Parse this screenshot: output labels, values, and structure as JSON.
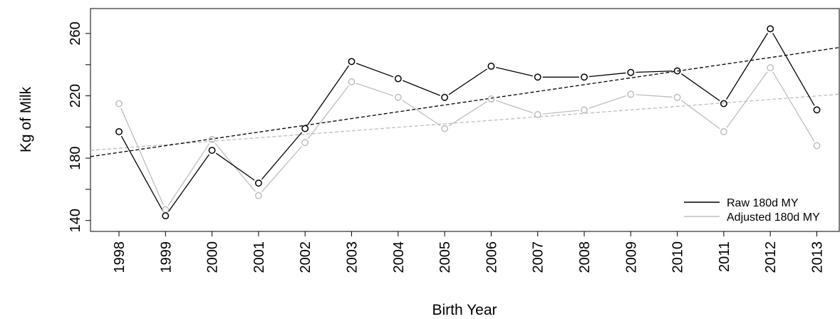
{
  "chart_data": {
    "type": "line",
    "xlabel": "Birth Year",
    "ylabel": "Kg of Milk",
    "categories": [
      "1998",
      "1999",
      "2000",
      "2001",
      "2002",
      "2003",
      "2004",
      "2005",
      "2006",
      "2007",
      "2008",
      "2009",
      "2010",
      "2011",
      "2012",
      "2013"
    ],
    "ylim": [
      133,
      276
    ],
    "yticks": [
      "140",
      "180",
      "220",
      "260"
    ],
    "yticks_minor": [
      160,
      200,
      240
    ],
    "series": [
      {
        "name": "Raw 180d MY",
        "color": "#000000",
        "marker": "open-circle",
        "values": [
          197,
          143,
          185,
          164,
          199,
          242,
          231,
          219,
          239,
          232,
          232,
          235,
          236,
          215,
          263,
          211
        ],
        "trend": {
          "style": "dashed",
          "start": 181,
          "end": 251
        }
      },
      {
        "name": "Adjusted 180d MY",
        "color": "#bdbdbd",
        "marker": "open-circle",
        "values": [
          215,
          147,
          192,
          156,
          190,
          229,
          219,
          199,
          218,
          208,
          211,
          221,
          219,
          197,
          238,
          188
        ],
        "trend": {
          "style": "dashed",
          "start": 185,
          "end": 221
        }
      }
    ],
    "legend": {
      "placement": "bottom-right",
      "box": false
    },
    "grid": false
  }
}
